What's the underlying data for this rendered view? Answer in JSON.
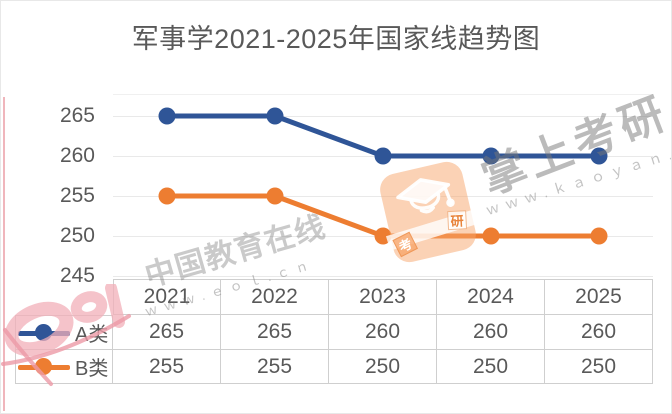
{
  "title": "军事学2021-2025年国家线趋势图",
  "chart_data": {
    "type": "line",
    "categories": [
      "2021",
      "2022",
      "2023",
      "2024",
      "2025"
    ],
    "series": [
      {
        "name": "A类",
        "values": [
          265,
          265,
          260,
          260,
          260
        ],
        "color": "#2f5597"
      },
      {
        "name": "B类",
        "values": [
          255,
          255,
          250,
          250,
          250
        ],
        "color": "#ed7d31"
      }
    ],
    "yticks": [
      265,
      260,
      255,
      250,
      245
    ],
    "ylim": [
      245,
      267.5
    ],
    "grid": "horizontal",
    "legend_position": "table-left-column",
    "data_table_shown": true
  },
  "watermarks": {
    "eol_text": "中国教育在线",
    "eol_url": "ｗｗｗ.ｅｏｌ.ｃｎ",
    "kaoyan_text": "掌上考研",
    "kaoyan_url": "ｗｗｗ.ｋａｏｙａｎ.ｃｎ",
    "kaoyan_badge_left": "考",
    "kaoyan_badge_right": "研"
  },
  "colors": {
    "series_a": "#2f5597",
    "series_b": "#ed7d31",
    "text": "#595959",
    "gridline": "#e9e9e9",
    "table_border": "#cfcfcf",
    "watermark_pink": "#f2afb8",
    "watermark_gray": "#bdbdbd"
  }
}
